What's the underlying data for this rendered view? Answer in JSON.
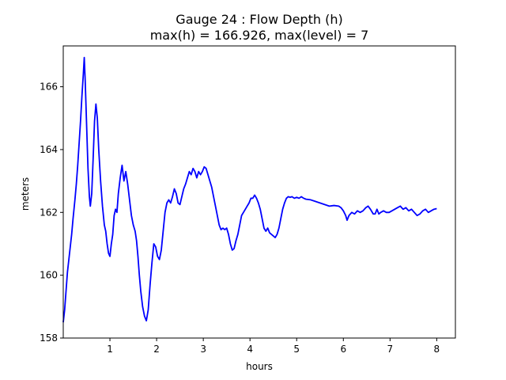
{
  "chart_data": {
    "type": "line",
    "title": "Gauge 24 : Flow Depth (h)",
    "subtitle": "max(h) = 166.926,    max(level) = 7",
    "xlabel": "hours",
    "ylabel": "meters",
    "xlim": [
      0,
      8.4
    ],
    "ylim": [
      158,
      167.3
    ],
    "xticks": [
      1,
      2,
      3,
      4,
      5,
      6,
      7,
      8
    ],
    "yticks": [
      158,
      160,
      162,
      164,
      166
    ],
    "grid": false,
    "series": [
      {
        "color": "#0000ff",
        "points": [
          [
            0.0,
            158.5
          ],
          [
            0.03,
            158.9
          ],
          [
            0.06,
            159.5
          ],
          [
            0.09,
            160.1
          ],
          [
            0.12,
            160.5
          ],
          [
            0.15,
            160.9
          ],
          [
            0.18,
            161.3
          ],
          [
            0.21,
            161.8
          ],
          [
            0.25,
            162.4
          ],
          [
            0.28,
            162.9
          ],
          [
            0.31,
            163.5
          ],
          [
            0.34,
            164.2
          ],
          [
            0.37,
            164.9
          ],
          [
            0.4,
            165.7
          ],
          [
            0.43,
            166.4
          ],
          [
            0.45,
            166.93
          ],
          [
            0.47,
            166.2
          ],
          [
            0.5,
            164.8
          ],
          [
            0.53,
            163.4
          ],
          [
            0.56,
            162.5
          ],
          [
            0.58,
            162.2
          ],
          [
            0.61,
            162.6
          ],
          [
            0.64,
            163.7
          ],
          [
            0.67,
            164.9
          ],
          [
            0.7,
            165.45
          ],
          [
            0.73,
            165.0
          ],
          [
            0.76,
            164.0
          ],
          [
            0.8,
            163.0
          ],
          [
            0.84,
            162.2
          ],
          [
            0.88,
            161.6
          ],
          [
            0.91,
            161.4
          ],
          [
            0.94,
            161.0
          ],
          [
            0.97,
            160.7
          ],
          [
            1.0,
            160.6
          ],
          [
            1.03,
            161.0
          ],
          [
            1.06,
            161.3
          ],
          [
            1.09,
            161.9
          ],
          [
            1.12,
            162.1
          ],
          [
            1.15,
            162.0
          ],
          [
            1.18,
            162.6
          ],
          [
            1.22,
            163.1
          ],
          [
            1.26,
            163.5
          ],
          [
            1.3,
            163.0
          ],
          [
            1.34,
            163.3
          ],
          [
            1.38,
            162.9
          ],
          [
            1.42,
            162.4
          ],
          [
            1.46,
            161.9
          ],
          [
            1.5,
            161.6
          ],
          [
            1.54,
            161.4
          ],
          [
            1.57,
            161.1
          ],
          [
            1.6,
            160.6
          ],
          [
            1.63,
            160.0
          ],
          [
            1.66,
            159.5
          ],
          [
            1.7,
            159.0
          ],
          [
            1.74,
            158.7
          ],
          [
            1.78,
            158.55
          ],
          [
            1.82,
            158.9
          ],
          [
            1.86,
            159.7
          ],
          [
            1.9,
            160.4
          ],
          [
            1.94,
            161.0
          ],
          [
            1.98,
            160.9
          ],
          [
            2.02,
            160.6
          ],
          [
            2.06,
            160.5
          ],
          [
            2.1,
            160.8
          ],
          [
            2.14,
            161.4
          ],
          [
            2.18,
            162.0
          ],
          [
            2.22,
            162.3
          ],
          [
            2.26,
            162.4
          ],
          [
            2.3,
            162.3
          ],
          [
            2.34,
            162.5
          ],
          [
            2.38,
            162.75
          ],
          [
            2.42,
            162.6
          ],
          [
            2.46,
            162.3
          ],
          [
            2.5,
            162.25
          ],
          [
            2.54,
            162.5
          ],
          [
            2.58,
            162.75
          ],
          [
            2.62,
            162.9
          ],
          [
            2.66,
            163.1
          ],
          [
            2.7,
            163.3
          ],
          [
            2.74,
            163.2
          ],
          [
            2.78,
            163.4
          ],
          [
            2.82,
            163.3
          ],
          [
            2.86,
            163.1
          ],
          [
            2.9,
            163.3
          ],
          [
            2.94,
            163.2
          ],
          [
            2.98,
            163.3
          ],
          [
            3.02,
            163.45
          ],
          [
            3.06,
            163.4
          ],
          [
            3.1,
            163.2
          ],
          [
            3.14,
            163.0
          ],
          [
            3.18,
            162.8
          ],
          [
            3.22,
            162.5
          ],
          [
            3.26,
            162.2
          ],
          [
            3.3,
            161.9
          ],
          [
            3.34,
            161.6
          ],
          [
            3.38,
            161.45
          ],
          [
            3.42,
            161.5
          ],
          [
            3.46,
            161.45
          ],
          [
            3.5,
            161.5
          ],
          [
            3.54,
            161.3
          ],
          [
            3.58,
            161.0
          ],
          [
            3.62,
            160.8
          ],
          [
            3.66,
            160.85
          ],
          [
            3.7,
            161.1
          ],
          [
            3.74,
            161.3
          ],
          [
            3.78,
            161.6
          ],
          [
            3.82,
            161.9
          ],
          [
            3.86,
            162.0
          ],
          [
            3.9,
            162.1
          ],
          [
            3.94,
            162.2
          ],
          [
            3.98,
            162.3
          ],
          [
            4.02,
            162.45
          ],
          [
            4.06,
            162.45
          ],
          [
            4.1,
            162.55
          ],
          [
            4.14,
            162.45
          ],
          [
            4.18,
            162.3
          ],
          [
            4.22,
            162.1
          ],
          [
            4.26,
            161.8
          ],
          [
            4.3,
            161.5
          ],
          [
            4.34,
            161.4
          ],
          [
            4.38,
            161.5
          ],
          [
            4.42,
            161.35
          ],
          [
            4.46,
            161.3
          ],
          [
            4.5,
            161.25
          ],
          [
            4.54,
            161.2
          ],
          [
            4.58,
            161.3
          ],
          [
            4.62,
            161.5
          ],
          [
            4.66,
            161.8
          ],
          [
            4.7,
            162.1
          ],
          [
            4.74,
            162.3
          ],
          [
            4.78,
            162.45
          ],
          [
            4.82,
            162.5
          ],
          [
            4.86,
            162.48
          ],
          [
            4.9,
            162.5
          ],
          [
            4.95,
            162.45
          ],
          [
            5.0,
            162.48
          ],
          [
            5.05,
            162.45
          ],
          [
            5.1,
            162.5
          ],
          [
            5.15,
            162.45
          ],
          [
            5.2,
            162.42
          ],
          [
            5.3,
            162.4
          ],
          [
            5.4,
            162.35
          ],
          [
            5.5,
            162.3
          ],
          [
            5.6,
            162.25
          ],
          [
            5.7,
            162.2
          ],
          [
            5.8,
            162.22
          ],
          [
            5.9,
            162.2
          ],
          [
            5.95,
            162.15
          ],
          [
            6.0,
            162.05
          ],
          [
            6.05,
            161.9
          ],
          [
            6.08,
            161.75
          ],
          [
            6.12,
            161.9
          ],
          [
            6.18,
            162.0
          ],
          [
            6.24,
            161.95
          ],
          [
            6.3,
            162.05
          ],
          [
            6.36,
            162.0
          ],
          [
            6.42,
            162.05
          ],
          [
            6.48,
            162.15
          ],
          [
            6.53,
            162.2
          ],
          [
            6.58,
            162.1
          ],
          [
            6.64,
            161.95
          ],
          [
            6.68,
            161.95
          ],
          [
            6.72,
            162.1
          ],
          [
            6.76,
            161.95
          ],
          [
            6.8,
            162.0
          ],
          [
            6.86,
            162.05
          ],
          [
            6.92,
            162.0
          ],
          [
            6.98,
            162.0
          ],
          [
            7.04,
            162.05
          ],
          [
            7.1,
            162.1
          ],
          [
            7.16,
            162.15
          ],
          [
            7.22,
            162.2
          ],
          [
            7.28,
            162.1
          ],
          [
            7.34,
            162.15
          ],
          [
            7.4,
            162.05
          ],
          [
            7.46,
            162.1
          ],
          [
            7.52,
            162.0
          ],
          [
            7.58,
            161.9
          ],
          [
            7.64,
            161.95
          ],
          [
            7.7,
            162.05
          ],
          [
            7.76,
            162.1
          ],
          [
            7.82,
            162.0
          ],
          [
            7.88,
            162.05
          ],
          [
            7.94,
            162.1
          ],
          [
            8.0,
            162.12
          ]
        ]
      }
    ]
  }
}
